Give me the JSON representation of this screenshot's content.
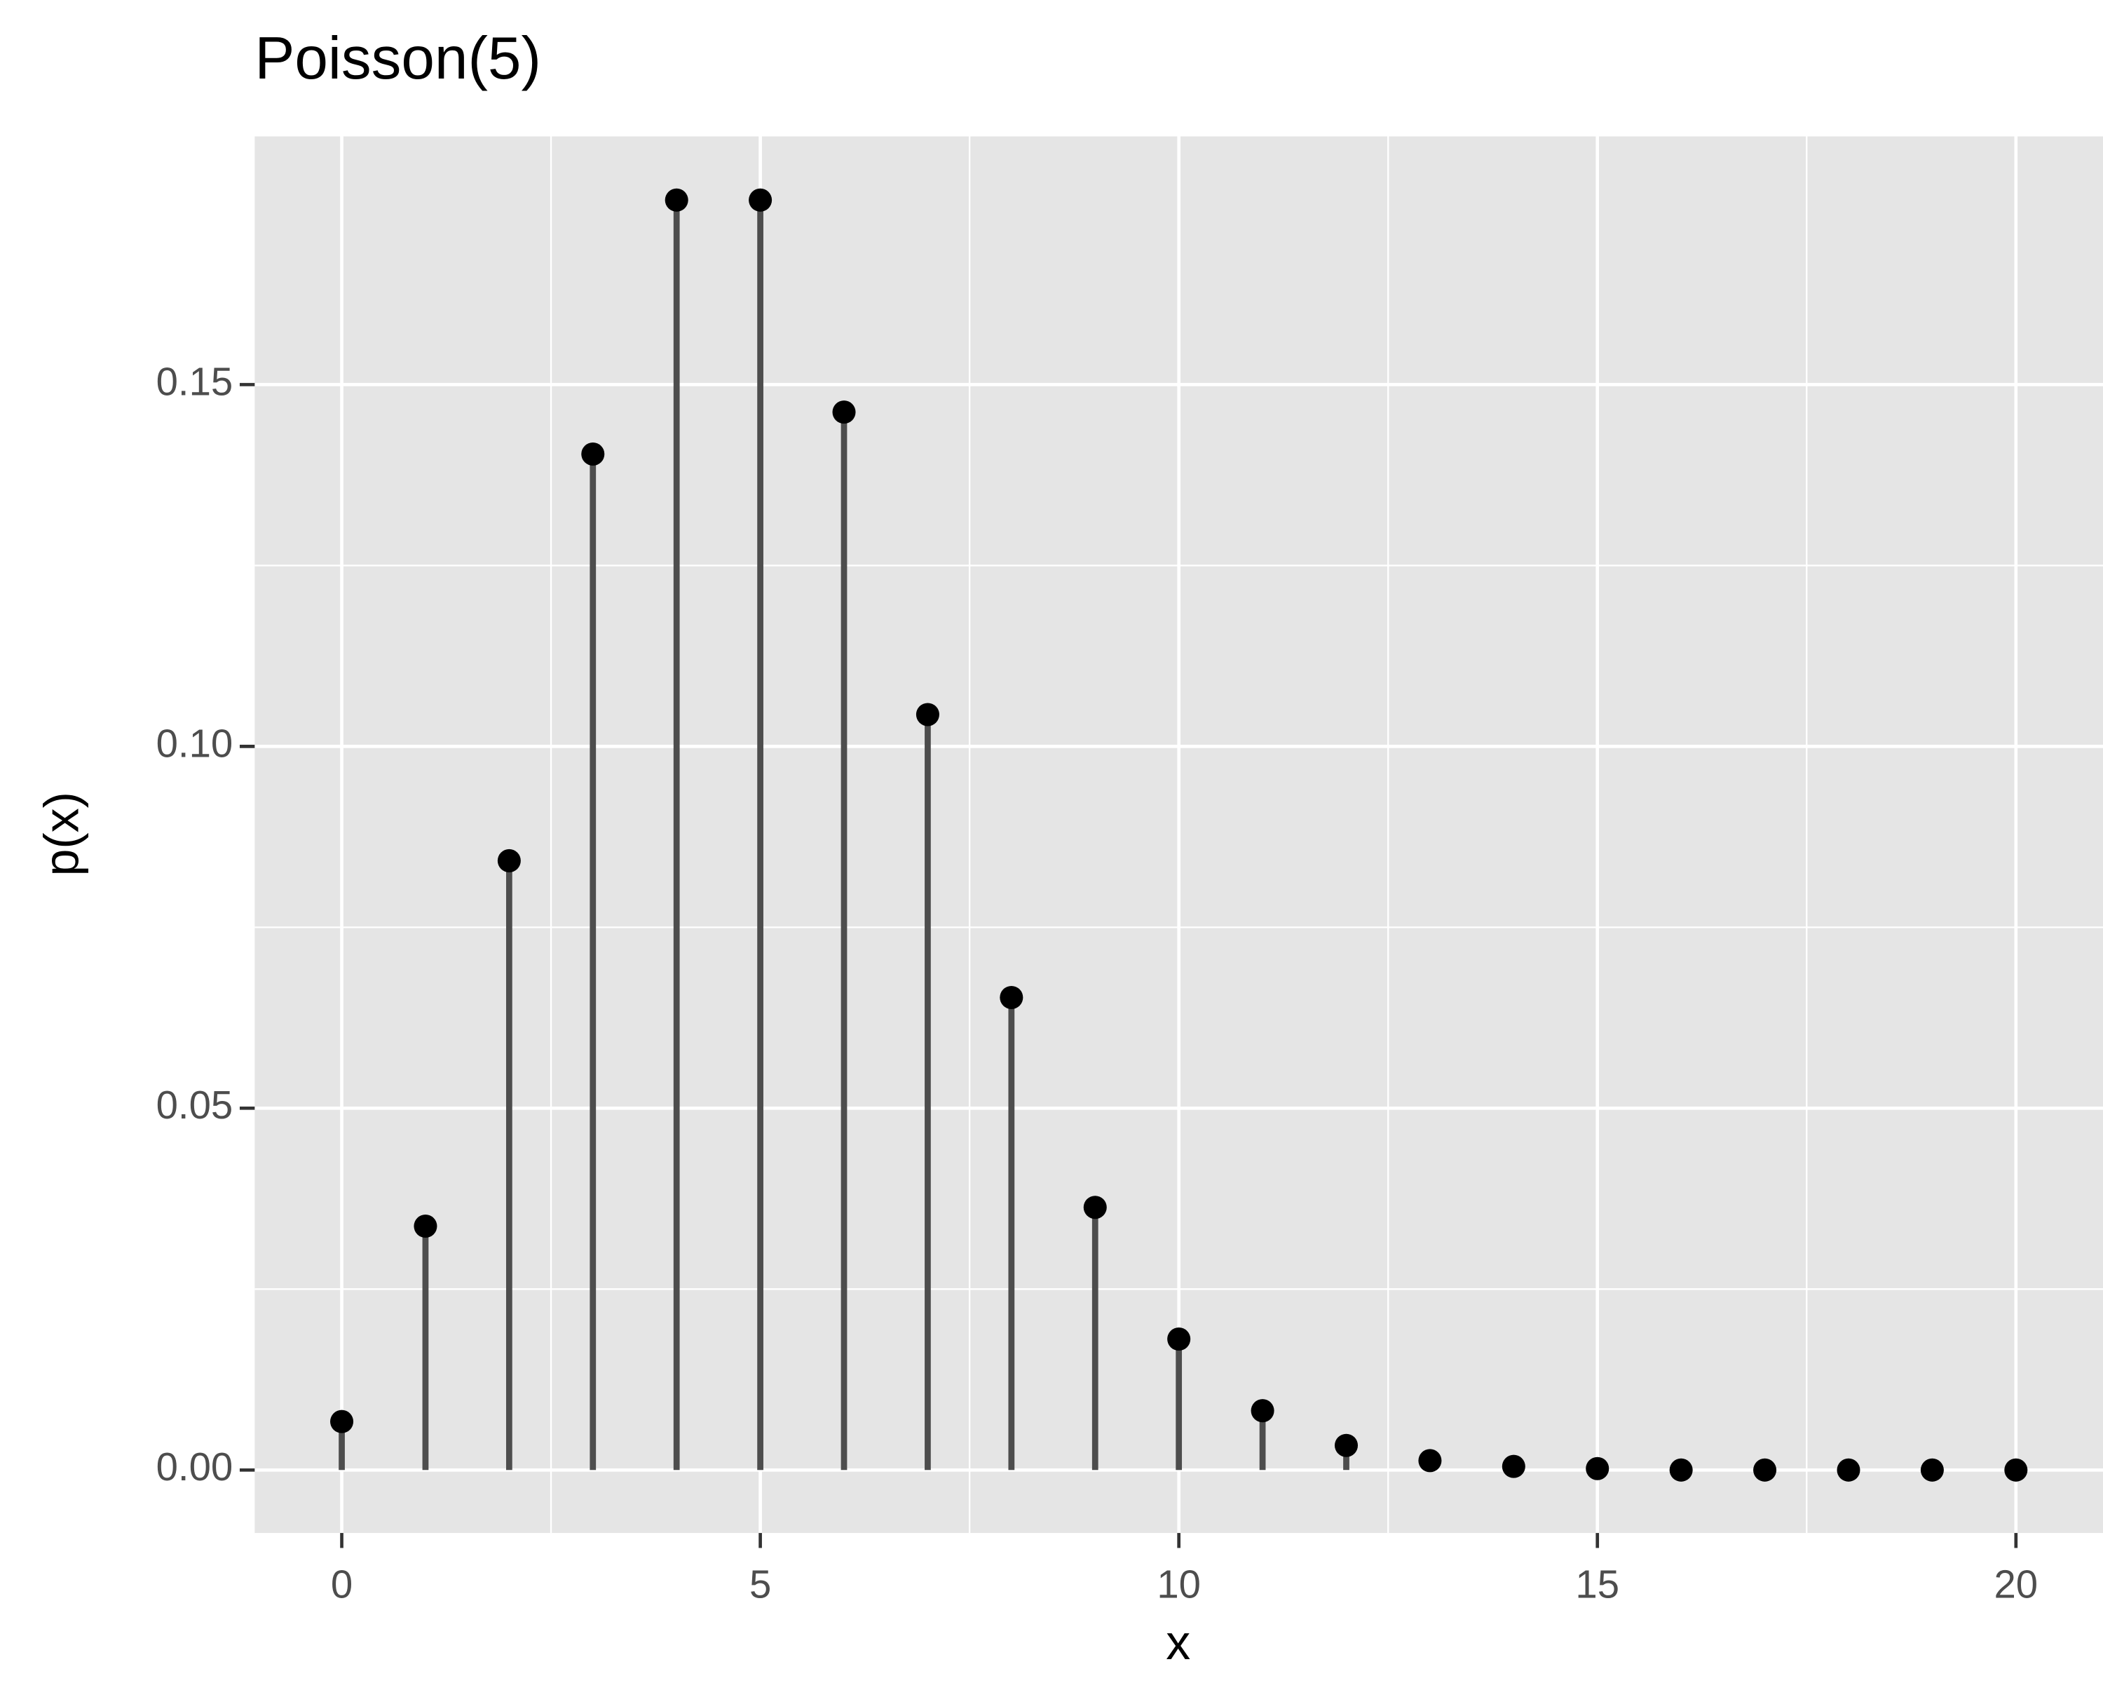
{
  "chart_data": {
    "type": "lollipop",
    "title": "Poisson(5)",
    "x_label": "x",
    "y_label": "p(x)",
    "x": [
      0,
      1,
      2,
      3,
      4,
      5,
      6,
      7,
      8,
      9,
      10,
      11,
      12,
      13,
      14,
      15,
      16,
      17,
      18,
      19,
      20
    ],
    "values": [
      0.0067,
      0.0337,
      0.0842,
      0.1404,
      0.1755,
      0.1755,
      0.1462,
      0.1044,
      0.0653,
      0.0363,
      0.0181,
      0.0082,
      0.0034,
      0.0013,
      0.0005,
      0.0002,
      0.0,
      0.0,
      0.0,
      0.0,
      0.0
    ],
    "color": "#000000",
    "stem_color": "#4d4d4d",
    "xlim": [
      -1.04,
      21.04
    ],
    "xticks": [
      0,
      5,
      10,
      15,
      20
    ],
    "ylim": [
      -0.0087,
      0.1843
    ],
    "yticks": [
      {
        "value": 0,
        "label": "0.00"
      },
      0.05,
      {
        "value": 0.1,
        "label": "0.10"
      },
      0.15
    ],
    "grid": true,
    "minor_grid": true
  }
}
